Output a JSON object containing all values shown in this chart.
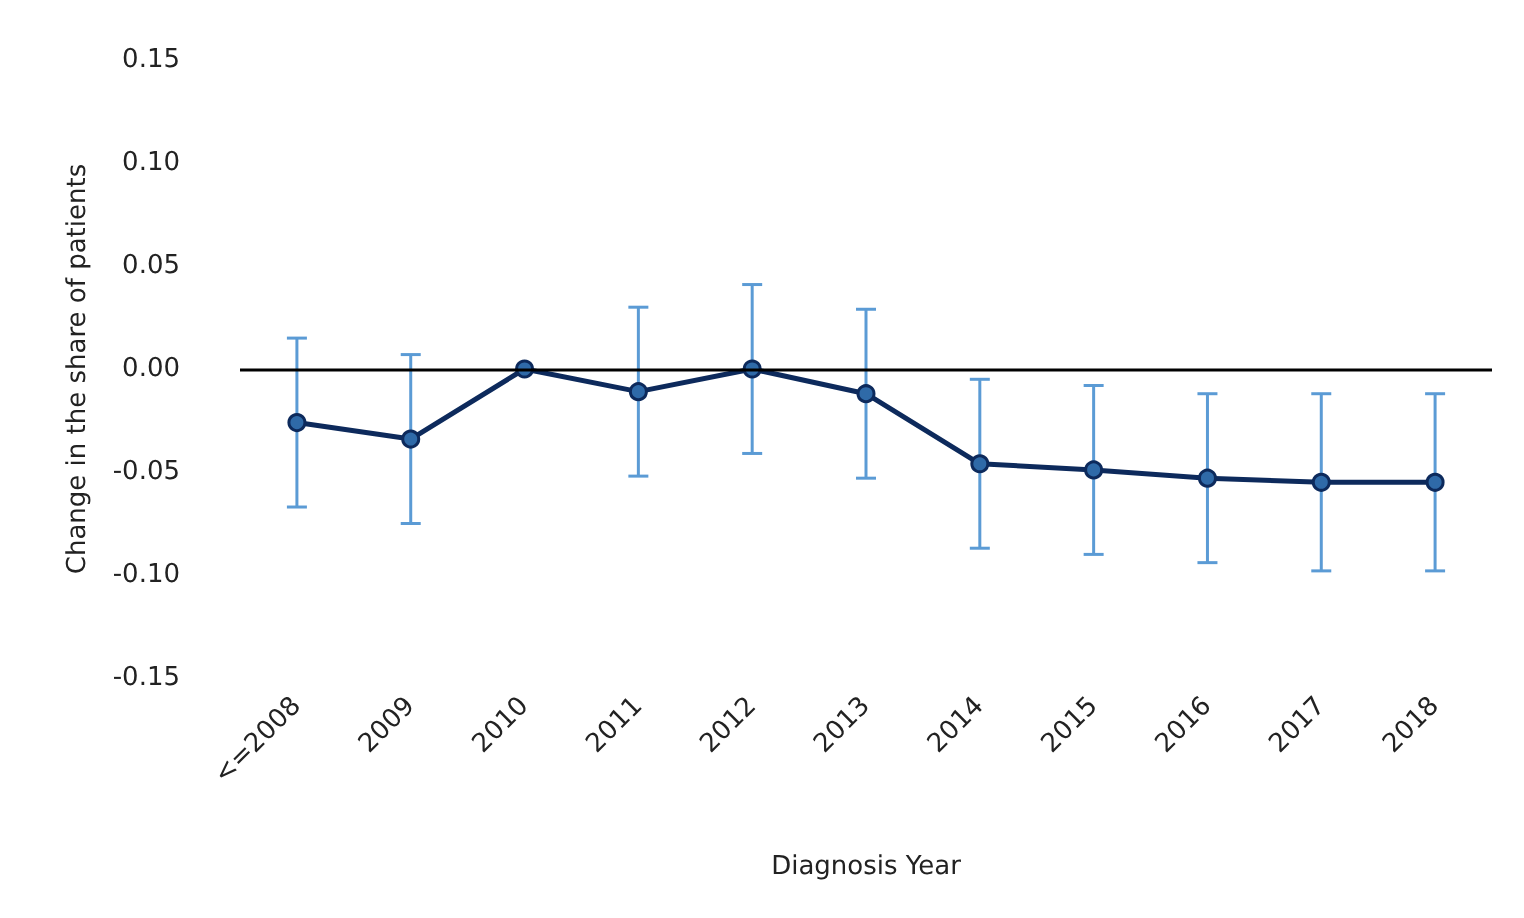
{
  "chart_data": {
    "type": "line",
    "xlabel": "Diagnosis Year",
    "ylabel": "Change in the share of patients",
    "categories": [
      "<=2008",
      "2009",
      "2010",
      "2011",
      "2012",
      "2013",
      "2014",
      "2015",
      "2016",
      "2017",
      "2018"
    ],
    "series": [
      {
        "color": "#0d2a5c",
        "values": [
          -0.026,
          -0.034,
          0,
          -0.011,
          0,
          -0.012,
          -0.046,
          -0.049,
          -0.053,
          -0.055,
          -0.055
        ],
        "errors": [
          [
            -0.067,
            0.015
          ],
          [
            -0.075,
            0.007
          ],
          null,
          [
            -0.052,
            0.03
          ],
          [
            -0.041,
            0.041
          ],
          [
            -0.053,
            0.029
          ],
          [
            -0.087,
            -0.005
          ],
          [
            -0.09,
            -0.008
          ],
          [
            -0.094,
            -0.012
          ],
          [
            -0.098,
            -0.012
          ],
          [
            -0.098,
            -0.012
          ]
        ]
      }
    ],
    "ylim": [
      -0.15,
      0.15
    ],
    "yticks": [
      {
        "value": -0.15,
        "label": "-0.15"
      },
      {
        "value": -0.1,
        "label": "-0.10"
      },
      {
        "value": -0.05,
        "label": "-0.05"
      },
      {
        "value": 0,
        "label": "0.00"
      },
      {
        "value": 0.05,
        "label": "0.05"
      },
      {
        "value": 0.1,
        "label": "0.10"
      },
      {
        "value": 0.15,
        "label": "0.15"
      }
    ],
    "ref_lines": [
      {
        "axis": "y",
        "value": 0,
        "color": "#000000"
      }
    ],
    "marker": "circle",
    "line_style": "solid"
  }
}
